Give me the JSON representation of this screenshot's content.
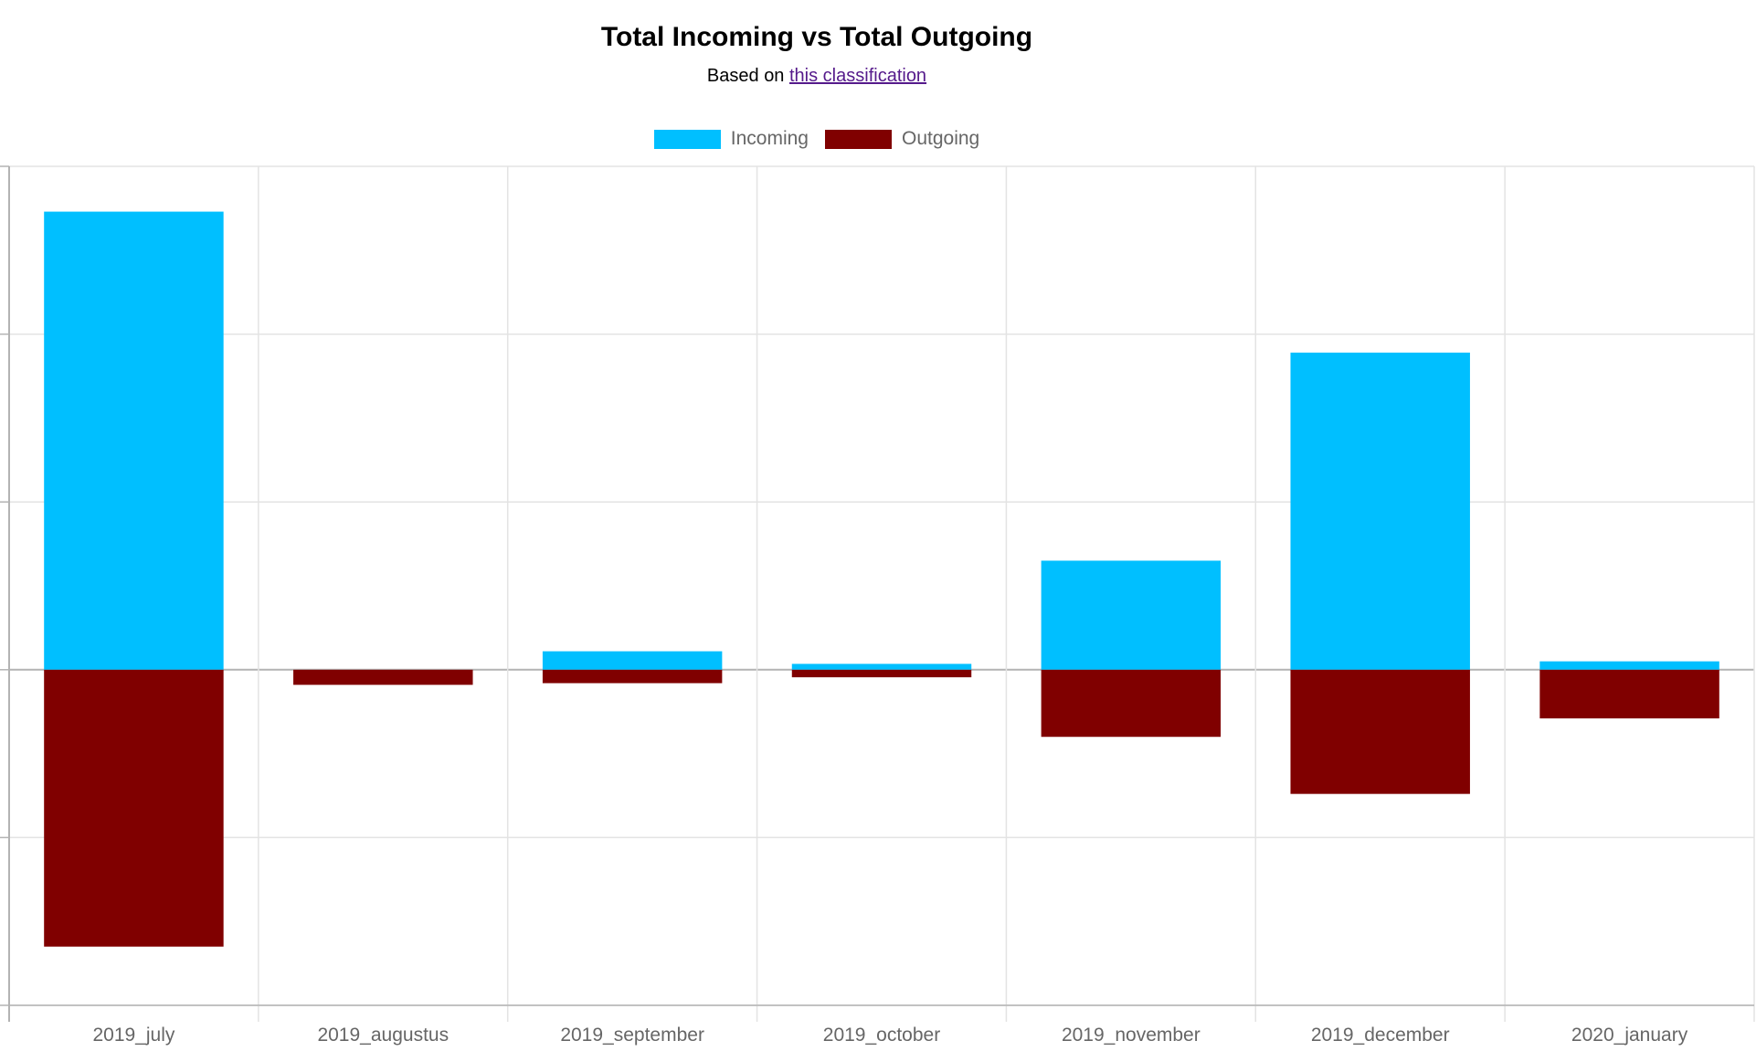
{
  "title": "Total Incoming vs Total Outgoing",
  "subtitle_prefix": "Based on",
  "subtitle_link": "this classification",
  "legend": [
    {
      "label": "Incoming",
      "color": "#00bfff"
    },
    {
      "label": "Outgoing",
      "color": "#800000"
    }
  ],
  "chart_data": {
    "type": "bar",
    "stacked": true,
    "categories": [
      "2019_july",
      "2019_augustus",
      "2019_september",
      "2019_october",
      "2019_november",
      "2019_december",
      "2020_january"
    ],
    "series": [
      {
        "name": "Incoming",
        "color": "#00bfff",
        "values": [
          2.73,
          0,
          0.11,
          0.035,
          0.65,
          1.89,
          0.05
        ]
      },
      {
        "name": "Outgoing",
        "color": "#800000",
        "values": [
          -1.65,
          -0.09,
          -0.08,
          -0.045,
          -0.4,
          -0.74,
          -0.29
        ]
      }
    ],
    "ylim": [
      -2,
      3
    ],
    "y_ticks": [
      -2,
      -1,
      0,
      1,
      2,
      3
    ],
    "y_tick_labels_visible": false,
    "grid": true,
    "legend_position": "top"
  }
}
